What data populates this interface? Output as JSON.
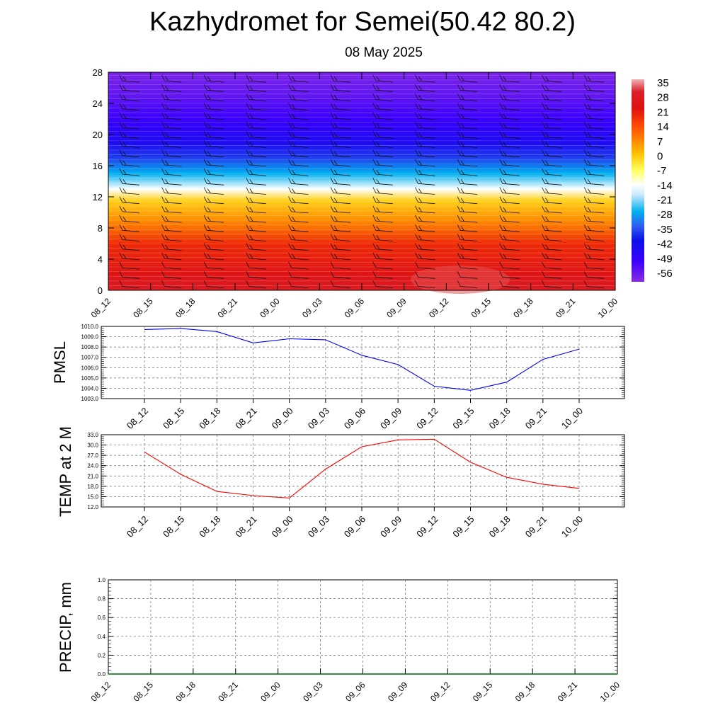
{
  "header": {
    "title": "Kazhydromet for Semei(50.42 80.2)",
    "subtitle": "08 May 2025"
  },
  "colors": {
    "pmsl_line": "#0000ff",
    "temp_line": "#ff0000",
    "precip_line": "#006400",
    "grid": "#555555"
  },
  "chart_data": [
    {
      "type": "heatmap",
      "title": "",
      "xlabel": "",
      "ylabel": "",
      "x": [
        "08_12",
        "08_15",
        "08_18",
        "08_21",
        "09_00",
        "09_03",
        "09_06",
        "09_09",
        "09_12",
        "09_15",
        "09_18",
        "09_21",
        "10_00"
      ],
      "y_ticks": [
        0,
        4,
        8,
        12,
        16,
        20,
        24,
        28
      ],
      "ylim": [
        0,
        28
      ],
      "colorbar": {
        "labels": [
          "35",
          "28",
          "21",
          "14",
          "7",
          "0",
          "-7",
          "-14",
          "-21",
          "-28",
          "-35",
          "-42",
          "-49",
          "-56"
        ],
        "range": [
          -60,
          38
        ],
        "stops": [
          {
            "v": 38,
            "c": "#f2b3b3"
          },
          {
            "v": 32,
            "c": "#d8202a"
          },
          {
            "v": 24,
            "c": "#e01010"
          },
          {
            "v": 16,
            "c": "#ff4500"
          },
          {
            "v": 8,
            "c": "#ff8c00"
          },
          {
            "v": 2,
            "c": "#ffc000"
          },
          {
            "v": -6,
            "c": "#ffff60"
          },
          {
            "v": -13,
            "c": "#ffffff"
          },
          {
            "v": -18,
            "c": "#c8e8ff"
          },
          {
            "v": -26,
            "c": "#00b0f0"
          },
          {
            "v": -33,
            "c": "#3060f0"
          },
          {
            "v": -40,
            "c": "#0a10e8"
          },
          {
            "v": -50,
            "c": "#3a00ff"
          },
          {
            "v": -60,
            "c": "#8a2be2"
          }
        ]
      },
      "vertical_profile": [
        {
          "alt": 0,
          "t": 30
        },
        {
          "alt": 2,
          "t": 26
        },
        {
          "alt": 6,
          "t": 20
        },
        {
          "alt": 9,
          "t": 8
        },
        {
          "alt": 11.5,
          "t": 0
        },
        {
          "alt": 13,
          "t": -13
        },
        {
          "alt": 15,
          "t": -26
        },
        {
          "alt": 17,
          "t": -36
        },
        {
          "alt": 19,
          "t": -44
        },
        {
          "alt": 22,
          "t": -50
        },
        {
          "alt": 25,
          "t": -55
        },
        {
          "alt": 28,
          "t": -58
        }
      ]
    },
    {
      "type": "line",
      "ylabel": "PMSL",
      "x": [
        "08_12",
        "08_15",
        "08_18",
        "08_21",
        "09_00",
        "09_03",
        "09_06",
        "09_09",
        "09_12",
        "09_15",
        "09_18",
        "09_21",
        "10_00"
      ],
      "ylim": [
        1003.0,
        1010.0
      ],
      "y_ticks": [
        "1003.0",
        "1004.0",
        "1005.0",
        "1006.0",
        "1007.0",
        "1008.0",
        "1009.0",
        "1010.0"
      ],
      "series": [
        {
          "values": [
            1009.7,
            1009.8,
            1009.5,
            1008.4,
            1008.8,
            1008.7,
            1007.2,
            1006.3,
            1004.2,
            1003.8,
            1004.6,
            1006.8,
            1007.8
          ]
        }
      ]
    },
    {
      "type": "line",
      "ylabel": "TEMP at 2 M",
      "x": [
        "08_12",
        "08_15",
        "08_18",
        "08_21",
        "09_00",
        "09_03",
        "09_06",
        "09_09",
        "09_12",
        "09_15",
        "09_18",
        "09_21",
        "10_00"
      ],
      "ylim": [
        12.0,
        33.0
      ],
      "y_ticks": [
        "12.0",
        "15.0",
        "18.0",
        "21.0",
        "24.0",
        "27.0",
        "30.0",
        "33.0"
      ],
      "series": [
        {
          "values": [
            28.0,
            21.5,
            16.5,
            15.3,
            14.6,
            23.0,
            29.5,
            31.5,
            31.7,
            25.0,
            20.6,
            18.6,
            17.4
          ]
        }
      ]
    },
    {
      "type": "line",
      "ylabel": "PRECIP, mm",
      "x": [
        "08_12",
        "08_15",
        "08_18",
        "08_21",
        "09_00",
        "09_03",
        "09_06",
        "09_09",
        "09_12",
        "09_15",
        "09_18",
        "09_21",
        "10_00"
      ],
      "ylim": [
        0.0,
        1.0
      ],
      "y_ticks": [
        "0.0",
        "0.2",
        "0.4",
        "0.6",
        "0.8",
        "1.0"
      ],
      "series": [
        {
          "values": [
            0,
            0,
            0,
            0,
            0,
            0,
            0,
            0,
            0,
            0,
            0,
            0,
            0
          ]
        }
      ]
    }
  ]
}
